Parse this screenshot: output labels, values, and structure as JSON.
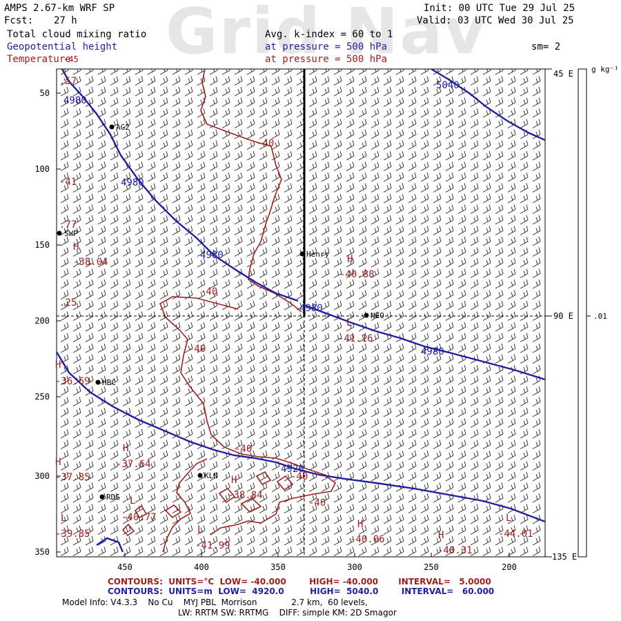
{
  "header": {
    "model": "AMPS 2.67-km WRF SP",
    "forecast_label": "Fcst:",
    "forecast_hours": "27 h",
    "init": "Init: 00 UTC Tue 29 Jul 25",
    "valid": "Valid: 03 UTC Wed 30 Jul 25",
    "watermark": "Grid Nav",
    "field1": "Total cloud mixing ratio",
    "field2": "Geopotential height",
    "field3": "Temperature",
    "avg_line": "Avg. k-index =  60 to    1",
    "pressure_line_1": "at pressure =  500 hPa",
    "pressure_line_2": "at pressure =  500 hPa",
    "smoothing": "sm= 2"
  },
  "colorbar": {
    "unit": "g kg⁻¹",
    "value": ".01",
    "lat_top": "45 E",
    "lat_mid": "90 E",
    "lat_bottom": "135 E"
  },
  "axes": {
    "y_ticks": [
      "50",
      "100",
      "150",
      "200",
      "250",
      "300",
      "350"
    ],
    "x_ticks": [
      "450",
      "400",
      "350",
      "300",
      "250",
      "200"
    ]
  },
  "stations": [
    {
      "name": "AG2"
    },
    {
      "name": "SWP"
    },
    {
      "name": "Henry"
    },
    {
      "name": "NEO"
    },
    {
      "name": "HBC"
    },
    {
      "name": "KLN"
    },
    {
      "name": "RDG"
    }
  ],
  "height_labels": [
    "4980",
    "4980",
    "4980",
    "4980",
    "4980",
    "5040",
    "4920"
  ],
  "temp_contour_labels": [
    "-40",
    "-40",
    "-40",
    "-40",
    "-40",
    "-40"
  ],
  "highs_lows": [
    {
      "symbol": "H",
      "value": "-38.04"
    },
    {
      "symbol": "H",
      "value": "-40.88"
    },
    {
      "symbol": "L",
      "value": "-41.16"
    },
    {
      "symbol": "H",
      "value": "-36.69"
    },
    {
      "symbol": "H",
      "value": "-37.64"
    },
    {
      "symbol": "H",
      "value": "-37.85"
    },
    {
      "symbol": "H",
      "value": "-38.84"
    },
    {
      "symbol": "L",
      "value": "-40.77"
    },
    {
      "symbol": "L",
      "value": "-39.85"
    },
    {
      "symbol": "L",
      "value": "-41.99"
    },
    {
      "symbol": "H",
      "value": "-40.06"
    },
    {
      "symbol": "H",
      "value": "-40.31"
    },
    {
      "symbol": "L",
      "value": "-44.01"
    }
  ],
  "edge_labels": [
    ".57",
    "-41",
    ".77",
    ".25",
    "-45"
  ],
  "footer": {
    "temp_contours": "CONTOURS:  UNITS=°C  LOW= -40.000        HIGH= -40.000       INTERVAL=   5.0000",
    "height_contours": "CONTOURS:  UNITS=m  LOW=  4920.0         HIGH=  5040.0        INTERVAL=   60.000",
    "model_info_1": "Model Info: V4.3.3    No Cu    MYJ PBL  Morrison             2.7 km,  60 levels,",
    "model_info_2": "LW: RRTM SW: RRTMG    DIFF: simple KM: 2D Smagor"
  },
  "colors": {
    "height": "#1f1fa0",
    "temperature": "#a01e1e",
    "text": "#000000"
  }
}
